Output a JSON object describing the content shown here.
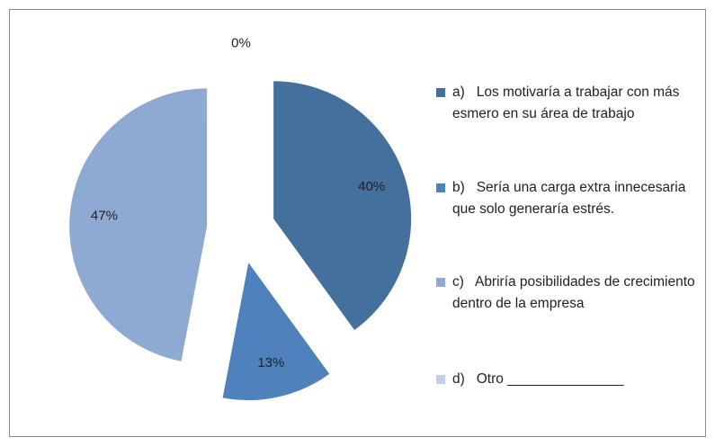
{
  "chart_data": {
    "type": "pie",
    "categories": [
      "a)   Los motivaría a trabajar con más esmero en su área de trabajo",
      "b)   Sería una carga extra innecesaria que solo generaría estrés.",
      "c)   Abriría posibilidades de crecimiento dentro de la empresa",
      "d)   Otro _______________"
    ],
    "values": [
      40,
      13,
      47,
      0
    ],
    "value_labels": [
      "40%",
      "13%",
      "47%",
      "0%"
    ],
    "colors": [
      "#44709e",
      "#4f81bd",
      "#8eaad2",
      "#c3d1e8"
    ],
    "legend": "right"
  }
}
